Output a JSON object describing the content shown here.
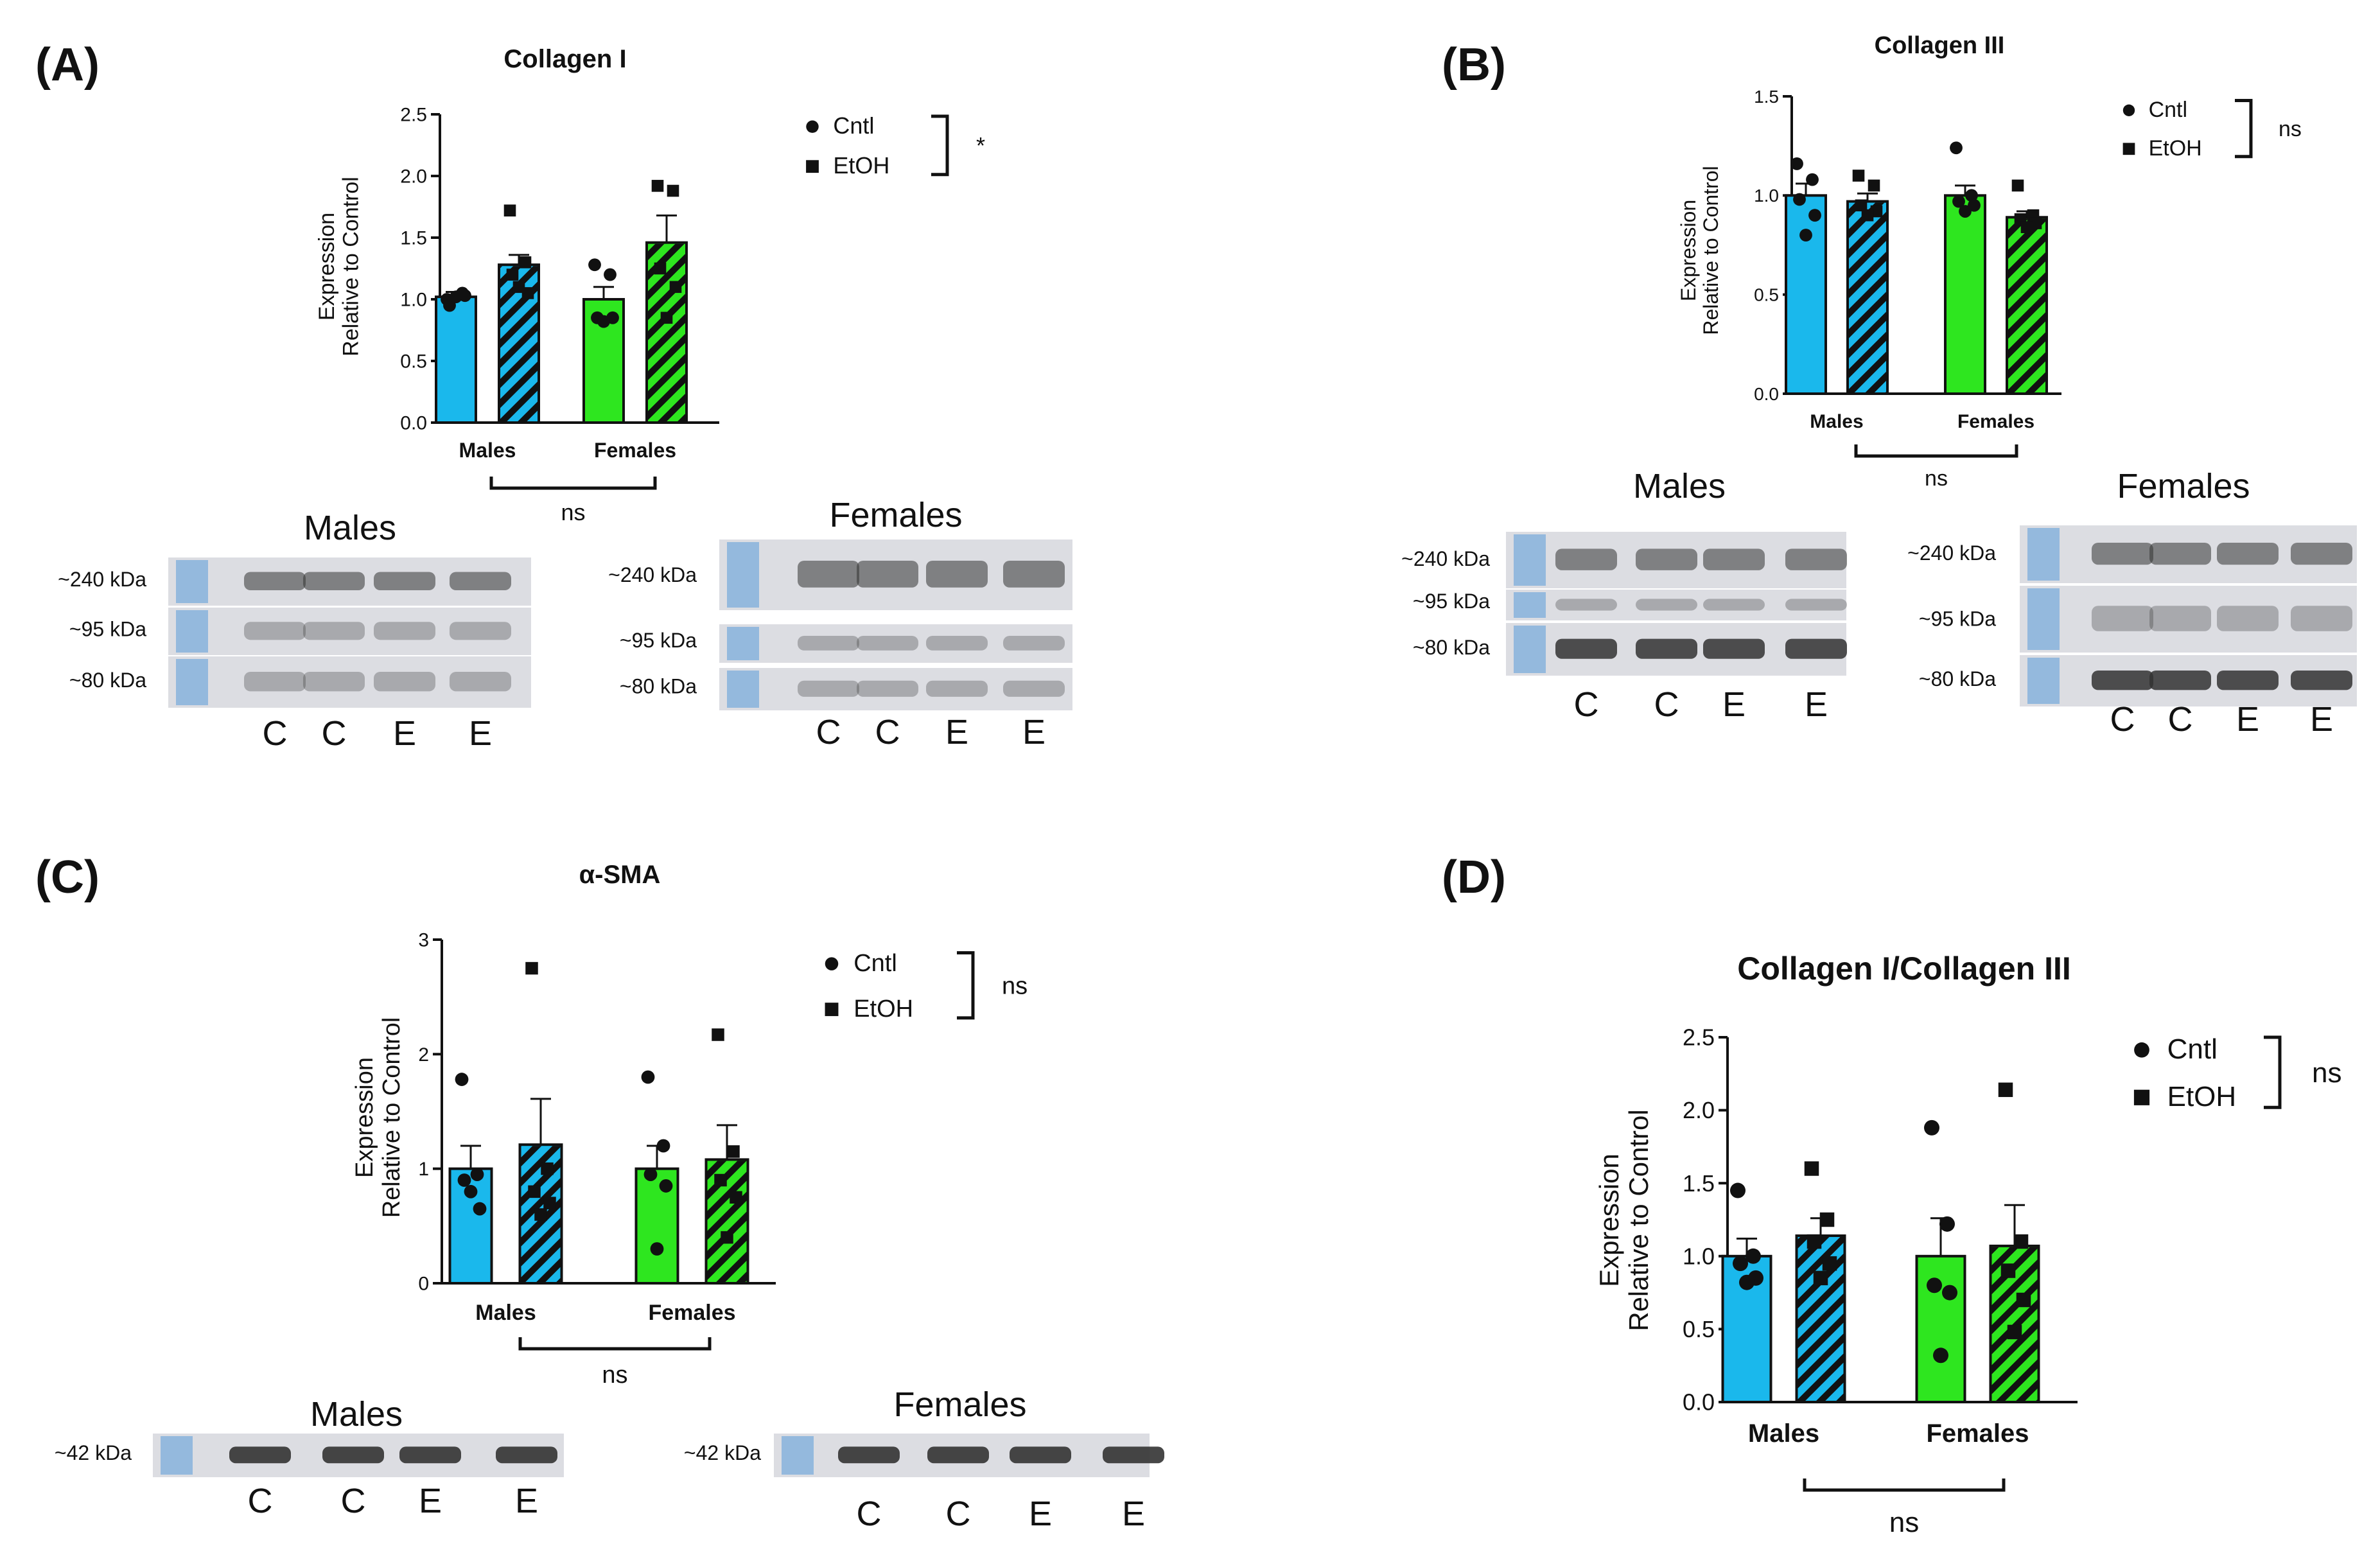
{
  "colors": {
    "cntl_male": "#1ab8ec",
    "etoh_male": "#1ab8ec",
    "cntl_female": "#2ee61f",
    "etoh_female": "#2ee61f",
    "axis": "#111111",
    "blot_bg": "#dcdde2",
    "ladder": "#5a9bd8"
  },
  "chart_data": [
    {
      "panel": "(A)",
      "type": "bar",
      "title": "Collagen I",
      "ylabel_line1": "Expression",
      "ylabel_line2": "Relative to Control",
      "ylim": [
        0,
        2.5
      ],
      "yticks": [
        "0.0",
        "0.5",
        "1.0",
        "1.5",
        "2.0",
        "2.5"
      ],
      "categories": [
        "Males",
        "Females"
      ],
      "series": [
        {
          "name": "Cntl",
          "values": [
            1.02,
            1.0
          ],
          "err": [
            0.04,
            0.1
          ],
          "points": [
            [
              1.0,
              1.05,
              0.95,
              1.03,
              1.02
            ],
            [
              1.28,
              1.2,
              0.85,
              0.85,
              0.82
            ]
          ]
        },
        {
          "name": "EtOH",
          "values": [
            1.28,
            1.46
          ],
          "err": [
            0.08,
            0.22
          ],
          "points": [
            [
              1.72,
              1.3,
              1.2,
              1.05,
              1.1
            ],
            [
              1.92,
              1.88,
              1.25,
              1.1,
              0.85
            ]
          ]
        }
      ],
      "legend": [
        "Cntl",
        "EtOH"
      ],
      "legend_sig": "*",
      "group_sig": "ns",
      "blots": [
        {
          "title": "Males",
          "kda": [
            "~240 kDa",
            "~95 kDa",
            "~80 kDa"
          ],
          "lanes": [
            "C",
            "C",
            "E",
            "E"
          ]
        },
        {
          "title": "Females",
          "kda": [
            "~240 kDa",
            "~95 kDa",
            "~80 kDa"
          ],
          "lanes": [
            "C",
            "C",
            "E",
            "E"
          ]
        }
      ]
    },
    {
      "panel": "(B)",
      "type": "bar",
      "title": "Collagen III",
      "ylabel_line1": "Expression",
      "ylabel_line2": "Relative to Control",
      "ylim": [
        0,
        1.5
      ],
      "yticks": [
        "0.0",
        "0.5",
        "1.0",
        "1.5"
      ],
      "categories": [
        "Males",
        "Females"
      ],
      "series": [
        {
          "name": "Cntl",
          "values": [
            1.0,
            1.0
          ],
          "err": [
            0.06,
            0.05
          ],
          "points": [
            [
              1.16,
              1.08,
              0.98,
              0.9,
              0.8
            ],
            [
              1.24,
              1.0,
              0.97,
              0.95,
              0.92
            ]
          ]
        },
        {
          "name": "EtOH",
          "values": [
            0.97,
            0.89
          ],
          "err": [
            0.04,
            0.03
          ],
          "points": [
            [
              1.1,
              1.05,
              0.95,
              0.92,
              0.9
            ],
            [
              1.05,
              0.9,
              0.88,
              0.86,
              0.84
            ]
          ]
        }
      ],
      "legend": [
        "Cntl",
        "EtOH"
      ],
      "legend_sig": "ns",
      "group_sig": "ns",
      "blots": [
        {
          "title": "Males",
          "kda": [
            "~240 kDa",
            "~95 kDa",
            "~80 kDa"
          ],
          "lanes": [
            "C",
            "C",
            "E",
            "E"
          ]
        },
        {
          "title": "Females",
          "kda": [
            "~240 kDa",
            "~95 kDa",
            "~80 kDa"
          ],
          "lanes": [
            "C",
            "C",
            "E",
            "E"
          ]
        }
      ]
    },
    {
      "panel": "(C)",
      "type": "bar",
      "title": "α-SMA",
      "ylabel_line1": "Expression",
      "ylabel_line2": "Relative to Control",
      "ylim": [
        0,
        3
      ],
      "yticks": [
        "0",
        "1",
        "2",
        "3"
      ],
      "categories": [
        "Males",
        "Females"
      ],
      "series": [
        {
          "name": "Cntl",
          "values": [
            1.0,
            1.0
          ],
          "err": [
            0.2,
            0.2
          ],
          "points": [
            [
              1.78,
              0.95,
              0.9,
              0.65,
              0.8
            ],
            [
              1.8,
              1.2,
              0.95,
              0.85,
              0.3
            ]
          ]
        },
        {
          "name": "EtOH",
          "values": [
            1.21,
            1.08
          ],
          "err": [
            0.4,
            0.3
          ],
          "points": [
            [
              2.75,
              1.0,
              0.8,
              0.7,
              0.6
            ],
            [
              2.17,
              1.15,
              0.9,
              0.75,
              0.4
            ]
          ]
        }
      ],
      "legend": [
        "Cntl",
        "EtOH"
      ],
      "legend_sig": "ns",
      "group_sig": "ns",
      "blots": [
        {
          "title": "Males",
          "kda": [
            "~42 kDa"
          ],
          "lanes": [
            "C",
            "C",
            "E",
            "E"
          ]
        },
        {
          "title": "Females",
          "kda": [
            "~42 kDa"
          ],
          "lanes": [
            "C",
            "C",
            "E",
            "E"
          ]
        }
      ]
    },
    {
      "panel": "(D)",
      "type": "bar",
      "title": "Collagen I/Collagen III",
      "ylabel_line1": "Expression",
      "ylabel_line2": "Relative to Control",
      "ylim": [
        0,
        2.5
      ],
      "yticks": [
        "0.0",
        "0.5",
        "1.0",
        "1.5",
        "2.0",
        "2.5"
      ],
      "categories": [
        "Males",
        "Females"
      ],
      "series": [
        {
          "name": "Cntl",
          "values": [
            1.0,
            1.0
          ],
          "err": [
            0.12,
            0.26
          ],
          "points": [
            [
              1.45,
              1.0,
              0.95,
              0.85,
              0.82
            ],
            [
              1.88,
              1.22,
              0.8,
              0.75,
              0.32
            ]
          ]
        },
        {
          "name": "EtOH",
          "values": [
            1.14,
            1.07
          ],
          "err": [
            0.12,
            0.28
          ],
          "points": [
            [
              1.6,
              1.25,
              1.1,
              0.95,
              0.85
            ],
            [
              2.14,
              1.1,
              0.9,
              0.7,
              0.48
            ]
          ]
        }
      ],
      "legend": [
        "Cntl",
        "EtOH"
      ],
      "legend_sig": "ns",
      "group_sig": "ns",
      "blots": []
    }
  ]
}
